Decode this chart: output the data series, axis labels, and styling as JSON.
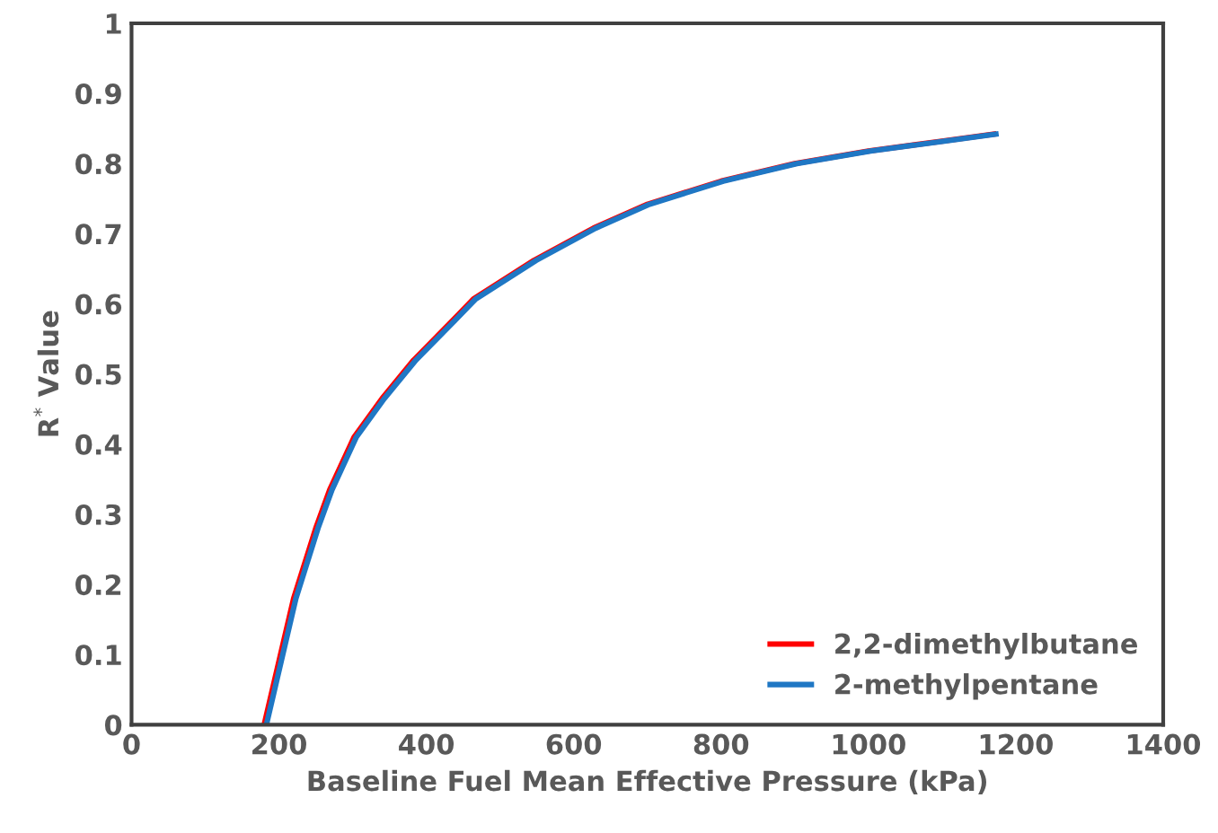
{
  "chart_data": {
    "type": "line",
    "xlabel": "Baseline Fuel Mean Effective Pressure (kPa)",
    "ylabel": "R$^{*}$ Value",
    "xlim": [
      0,
      1400
    ],
    "xticks": [
      0,
      200,
      400,
      600,
      800,
      1000,
      1200,
      1400
    ],
    "ylim": [
      0,
      1
    ],
    "yticks": [
      0,
      0.1,
      0.2,
      0.3,
      0.4,
      0.5,
      0.6,
      0.7,
      0.8,
      0.9,
      1
    ],
    "grid": false,
    "legend": "bottom right",
    "marker": "none",
    "line_style": "solid",
    "series": [
      {
        "name": "2,2-dimethylbutane",
        "color": "#ff0000",
        "x": [
          180,
          200,
          220,
          250,
          269,
          302,
          340,
          383,
          430,
          464,
          546,
          627,
          700,
          800,
          900,
          1000,
          1100,
          1170
        ],
        "values": [
          0,
          0.09,
          0.18,
          0.28,
          0.335,
          0.41,
          0.465,
          0.52,
          0.57,
          0.607,
          0.662,
          0.708,
          0.742,
          0.775,
          0.8,
          0.818,
          0.832,
          0.842
        ]
      },
      {
        "name": "2-methylpentane",
        "color": "#1f77c4",
        "x": [
          183,
          203,
          223,
          253,
          272,
          305,
          343,
          386,
          433,
          467,
          549,
          630,
          703,
          803,
          903,
          1003,
          1103,
          1173
        ],
        "values": [
          0,
          0.09,
          0.18,
          0.28,
          0.335,
          0.41,
          0.465,
          0.52,
          0.57,
          0.607,
          0.662,
          0.708,
          0.742,
          0.775,
          0.8,
          0.818,
          0.832,
          0.842
        ]
      }
    ]
  }
}
